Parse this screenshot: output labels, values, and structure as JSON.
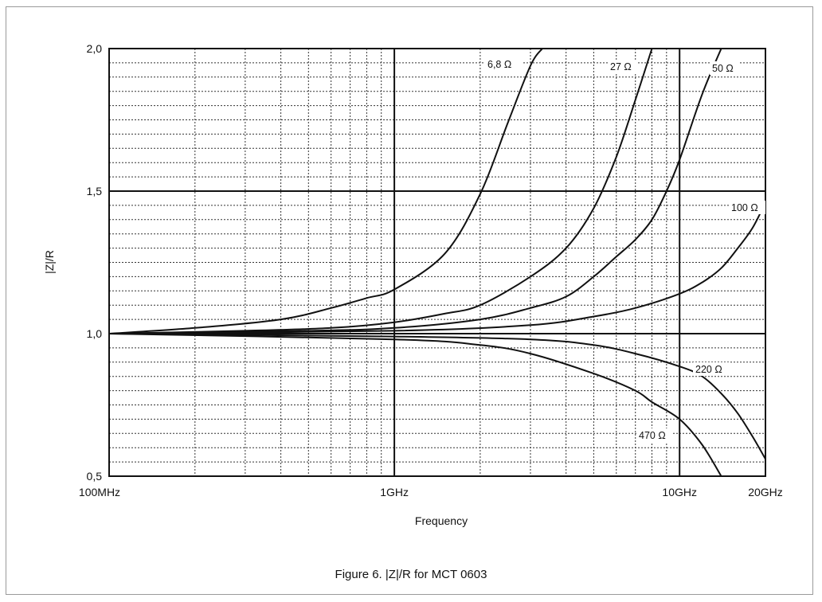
{
  "chart_data": {
    "type": "line",
    "title": "",
    "xlabel": "Frequency",
    "ylabel": "|Z|/R",
    "x_scale": "log",
    "x_unit": "Hz",
    "xlim": [
      100000000.0,
      20000000000.0
    ],
    "ylim": [
      0.5,
      2.0
    ],
    "x_ticks": [
      {
        "value": 100000000.0,
        "label": "100MHz"
      },
      {
        "value": 1000000000.0,
        "label": "1GHz"
      },
      {
        "value": 10000000000.0,
        "label": "10GHz"
      },
      {
        "value": 20000000000.0,
        "label": "20GHz"
      }
    ],
    "y_ticks": [
      {
        "value": 0.5,
        "label": "0,5"
      },
      {
        "value": 1.0,
        "label": "1,0"
      },
      {
        "value": 1.5,
        "label": "1,5"
      },
      {
        "value": 2.0,
        "label": "2,0"
      }
    ],
    "grid": "major solid, minor dotted",
    "legend": "none (inline curve labels)",
    "series": [
      {
        "name": "6,8 Ω",
        "x": [
          100000000.0,
          200000000.0,
          400000000.0,
          600000000.0,
          800000000.0,
          1000000000.0,
          1500000000.0,
          2000000000.0,
          2500000000.0,
          3000000000.0,
          3300000000.0
        ],
        "y": [
          1.0,
          1.02,
          1.05,
          1.09,
          1.125,
          1.155,
          1.28,
          1.49,
          1.74,
          1.94,
          2.0
        ]
      },
      {
        "name": "27 Ω",
        "x": [
          100000000.0,
          300000000.0,
          600000000.0,
          1000000000.0,
          1500000000.0,
          2000000000.0,
          3000000000.0,
          4000000000.0,
          5000000000.0,
          6000000000.0,
          7000000000.0,
          8000000000.0
        ],
        "y": [
          1.0,
          1.01,
          1.02,
          1.04,
          1.07,
          1.1,
          1.2,
          1.3,
          1.44,
          1.62,
          1.82,
          2.0
        ]
      },
      {
        "name": "50 Ω",
        "x": [
          100000000.0,
          500000000.0,
          1000000000.0,
          2000000000.0,
          3000000000.0,
          4000000000.0,
          5000000000.0,
          6000000000.0,
          7000000000.0,
          8000000000.0,
          9000000000.0,
          10000000000.0,
          12000000000.0,
          14000000000.0
        ],
        "y": [
          1.0,
          1.01,
          1.02,
          1.05,
          1.09,
          1.13,
          1.2,
          1.27,
          1.33,
          1.4,
          1.5,
          1.61,
          1.84,
          2.0
        ]
      },
      {
        "name": "100 Ω",
        "x": [
          100000000.0,
          1000000000.0,
          3000000000.0,
          5000000000.0,
          7000000000.0,
          10000000000.0,
          12000000000.0,
          14000000000.0,
          16000000000.0,
          18000000000.0,
          20000000000.0
        ],
        "y": [
          1.0,
          1.01,
          1.03,
          1.06,
          1.09,
          1.14,
          1.18,
          1.23,
          1.3,
          1.37,
          1.46
        ]
      },
      {
        "name": "220 Ω",
        "x": [
          100000000.0,
          1000000000.0,
          3000000000.0,
          5000000000.0,
          7000000000.0,
          10000000000.0,
          12000000000.0,
          14000000000.0,
          16000000000.0,
          18000000000.0,
          20000000000.0
        ],
        "y": [
          1.0,
          0.99,
          0.98,
          0.96,
          0.93,
          0.885,
          0.85,
          0.79,
          0.72,
          0.64,
          0.56
        ]
      },
      {
        "name": "470 Ω",
        "x": [
          100000000.0,
          1000000000.0,
          2000000000.0,
          3000000000.0,
          5000000000.0,
          7000000000.0,
          8000000000.0,
          10000000000.0,
          12000000000.0,
          14000000000.0
        ],
        "y": [
          1.0,
          0.98,
          0.96,
          0.93,
          0.86,
          0.8,
          0.76,
          0.7,
          0.61,
          0.5
        ]
      }
    ],
    "caption": "Figure 6. |Z|/R for MCT 0603"
  }
}
